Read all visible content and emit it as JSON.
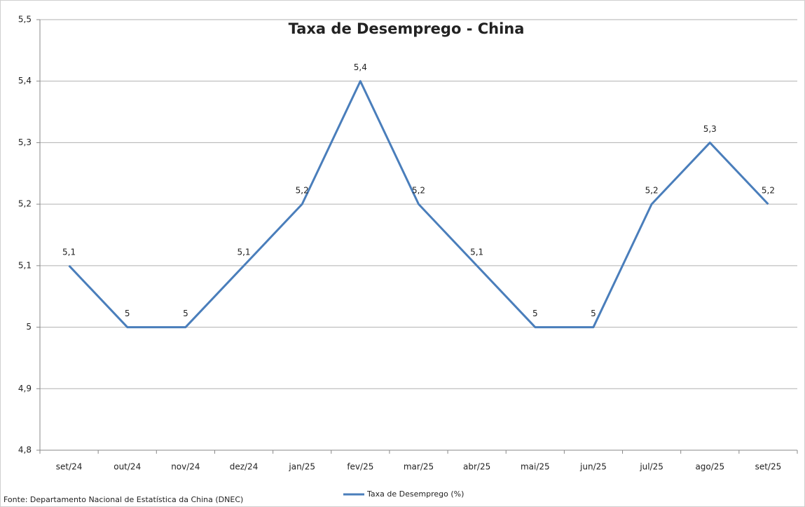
{
  "chart_data": {
    "type": "line",
    "title": "Taxa de Desemprego - China",
    "source": "Fonte: Departamento Nacional de Estatística da China (DNEC)",
    "categories": [
      "set/24",
      "out/24",
      "nov/24",
      "dez/24",
      "jan/25",
      "fev/25",
      "mar/25",
      "abr/25",
      "mai/25",
      "jun/25",
      "jul/25",
      "ago/25",
      "set/25"
    ],
    "series": [
      {
        "name": "Taxa de Desemprego (%)",
        "color": "#4a7ebb",
        "values": [
          5.1,
          5,
          5,
          5.1,
          5.2,
          5.4,
          5.2,
          5.1,
          5,
          5,
          5.2,
          5.3,
          5.2
        ],
        "value_labels": [
          "5,1",
          "5",
          "5",
          "5,1",
          "5,2",
          "5,4",
          "5,2",
          "5,1",
          "5",
          "5",
          "5,2",
          "5,3",
          "5,2"
        ]
      }
    ],
    "ylim": [
      4.8,
      5.5
    ],
    "yticks": [
      {
        "value": 4.8,
        "label": "4,8"
      },
      {
        "value": 4.9,
        "label": "4,9"
      },
      5,
      {
        "value": 5.1,
        "label": "5,1"
      },
      {
        "value": 5.2,
        "label": "5,2"
      },
      {
        "value": 5.3,
        "label": "5,3"
      },
      {
        "value": 5.4,
        "label": "5,4"
      },
      {
        "value": 5.5,
        "label": "5,5"
      }
    ],
    "grid": true,
    "legend": "bottom"
  }
}
